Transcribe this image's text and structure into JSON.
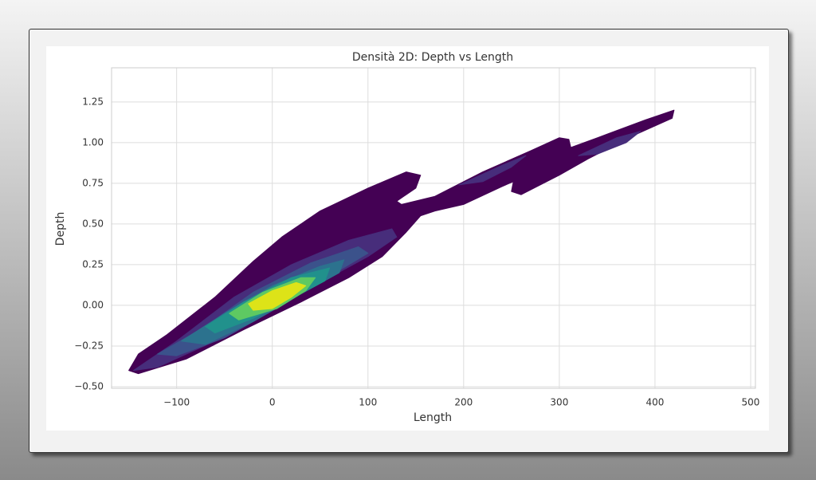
{
  "chart_data": {
    "type": "kde",
    "title": "Densità 2D: Depth vs Length",
    "x_label": "Length",
    "y_label": "Depth",
    "xlim": [
      -168,
      505
    ],
    "ylim": [
      -0.51,
      1.46
    ],
    "grid": true,
    "xticks": [
      {
        "value": -100,
        "label": "−100"
      },
      0,
      100,
      200,
      300,
      400,
      500
    ],
    "yticks": [
      {
        "value": -0.5,
        "label": "−0.50"
      },
      {
        "value": -0.25,
        "label": "−0.25"
      },
      {
        "value": 0,
        "label": "0.00"
      },
      0.25,
      {
        "value": 0.5,
        "label": "0.50"
      },
      0.75,
      {
        "value": 1,
        "label": "1.00"
      },
      1.25
    ],
    "contours": [
      {
        "color": "#440154",
        "x": [
          -150,
          -140,
          -110,
          -60,
          -20,
          10,
          50,
          100,
          140,
          155,
          150,
          130,
          135,
          170,
          220,
          270,
          300,
          310,
          312,
          340,
          390,
          420,
          418,
          380,
          330,
          300,
          260,
          250,
          252,
          240,
          200,
          170,
          155,
          140,
          115,
          80,
          30,
          -30,
          -90,
          -140
        ],
        "y": [
          -0.4,
          -0.3,
          -0.18,
          0.05,
          0.27,
          0.42,
          0.58,
          0.72,
          0.82,
          0.8,
          0.72,
          0.64,
          0.62,
          0.67,
          0.82,
          0.95,
          1.03,
          1.02,
          0.97,
          1.03,
          1.14,
          1.2,
          1.15,
          1.05,
          0.9,
          0.8,
          0.68,
          0.7,
          0.76,
          0.73,
          0.62,
          0.58,
          0.55,
          0.45,
          0.3,
          0.17,
          0.02,
          -0.15,
          -0.33,
          -0.42
        ]
      },
      {
        "color": "#472d7b",
        "x": [
          195,
          240,
          265,
          250,
          220
        ],
        "y": [
          0.74,
          0.86,
          0.92,
          0.85,
          0.76
        ]
      },
      {
        "color": "#472d7b",
        "x": [
          320,
          360,
          385,
          370,
          340
        ],
        "y": [
          0.92,
          1.03,
          1.07,
          1.0,
          0.93
        ]
      },
      {
        "color": "#472d7b",
        "x": [
          -145,
          -100,
          -40,
          20,
          80,
          125,
          130,
          100,
          50,
          0,
          -60,
          -120
        ],
        "y": [
          -0.4,
          -0.22,
          0.05,
          0.25,
          0.4,
          0.47,
          0.42,
          0.3,
          0.14,
          -0.03,
          -0.22,
          -0.38
        ]
      },
      {
        "color": "#3b528b",
        "x": [
          -120,
          -70,
          -20,
          40,
          90,
          100,
          60,
          10,
          -50,
          -100
        ],
        "y": [
          -0.3,
          -0.13,
          0.08,
          0.26,
          0.36,
          0.32,
          0.18,
          0.0,
          -0.2,
          -0.31
        ]
      },
      {
        "color": "#2c728e",
        "x": [
          -95,
          -50,
          0,
          50,
          75,
          70,
          30,
          -20,
          -70
        ],
        "y": [
          -0.22,
          -0.05,
          0.12,
          0.24,
          0.28,
          0.2,
          0.07,
          -0.1,
          -0.24
        ]
      },
      {
        "color": "#21918c",
        "x": [
          -70,
          -30,
          20,
          60,
          55,
          20,
          -20,
          -60
        ],
        "y": [
          -0.13,
          0.02,
          0.17,
          0.23,
          0.15,
          0.04,
          -0.08,
          -0.17
        ]
      },
      {
        "color": "#5ec962",
        "x": [
          -45,
          -10,
          30,
          45,
          35,
          5,
          -35
        ],
        "y": [
          -0.05,
          0.08,
          0.17,
          0.17,
          0.09,
          -0.02,
          -0.09
        ]
      },
      {
        "color": "#dde318",
        "x": [
          -25,
          0,
          25,
          35,
          20,
          0,
          -20
        ],
        "y": [
          0.01,
          0.09,
          0.14,
          0.12,
          0.05,
          -0.02,
          -0.03
        ]
      }
    ]
  }
}
